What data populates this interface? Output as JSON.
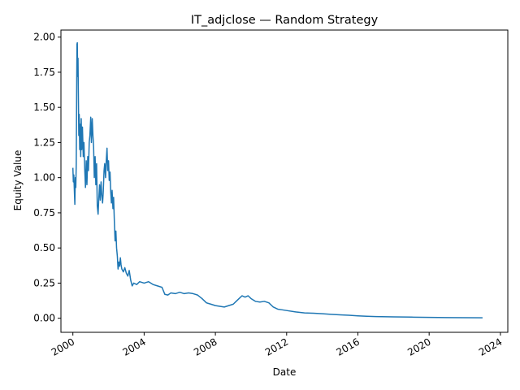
{
  "chart_data": {
    "type": "line",
    "title": "IT_adjclose — Random Strategy",
    "xlabel": "Date",
    "ylabel": "Equity Value",
    "xlim": [
      "1999-05-01",
      "2024-06-01"
    ],
    "ylim": [
      -0.1,
      2.05
    ],
    "grid": false,
    "legend": "none",
    "x_ticks": [
      "2000",
      "2004",
      "2008",
      "2012",
      "2016",
      "2020",
      "2024"
    ],
    "y_ticks": [
      "0.00",
      "0.25",
      "0.50",
      "0.75",
      "1.00",
      "1.25",
      "1.50",
      "1.75",
      "2.00"
    ],
    "series": [
      {
        "color": "#1f77b4",
        "points": [
          [
            "2000-01-01",
            1.07
          ],
          [
            "2000-01-10",
            0.97
          ],
          [
            "2000-01-20",
            1.02
          ],
          [
            "2000-02-01",
            0.9
          ],
          [
            "2000-02-10",
            0.81
          ],
          [
            "2000-02-20",
            1.0
          ],
          [
            "2000-03-01",
            0.93
          ],
          [
            "2000-03-10",
            1.1
          ],
          [
            "2000-03-15",
            1.38
          ],
          [
            "2000-03-20",
            1.7
          ],
          [
            "2000-03-25",
            1.95
          ],
          [
            "2000-04-01",
            1.96
          ],
          [
            "2000-04-08",
            1.72
          ],
          [
            "2000-04-15",
            1.85
          ],
          [
            "2000-04-22",
            1.6
          ],
          [
            "2000-05-01",
            1.3
          ],
          [
            "2000-05-10",
            1.45
          ],
          [
            "2000-05-20",
            1.2
          ],
          [
            "2000-06-01",
            1.38
          ],
          [
            "2000-06-10",
            1.15
          ],
          [
            "2000-06-20",
            1.42
          ],
          [
            "2000-07-01",
            1.2
          ],
          [
            "2000-07-15",
            1.36
          ],
          [
            "2000-08-01",
            1.15
          ],
          [
            "2000-08-15",
            1.25
          ],
          [
            "2000-09-01",
            1.05
          ],
          [
            "2000-09-15",
            0.93
          ],
          [
            "2000-10-01",
            1.12
          ],
          [
            "2000-10-15",
            0.95
          ],
          [
            "2000-11-01",
            1.15
          ],
          [
            "2000-11-15",
            1.05
          ],
          [
            "2000-12-01",
            1.25
          ],
          [
            "2000-12-15",
            1.3
          ],
          [
            "2001-01-01",
            1.43
          ],
          [
            "2001-01-15",
            1.25
          ],
          [
            "2001-02-01",
            1.42
          ],
          [
            "2001-02-15",
            1.3
          ],
          [
            "2001-03-01",
            1.22
          ],
          [
            "2001-03-15",
            1.0
          ],
          [
            "2001-04-01",
            1.15
          ],
          [
            "2001-04-15",
            0.95
          ],
          [
            "2001-05-01",
            1.1
          ],
          [
            "2001-05-15",
            0.8
          ],
          [
            "2001-06-01",
            0.74
          ],
          [
            "2001-06-15",
            0.85
          ],
          [
            "2001-07-01",
            0.95
          ],
          [
            "2001-07-15",
            0.84
          ],
          [
            "2001-08-01",
            0.97
          ],
          [
            "2001-08-15",
            0.88
          ],
          [
            "2001-09-01",
            0.82
          ],
          [
            "2001-09-15",
            0.9
          ],
          [
            "2001-10-01",
            1.05
          ],
          [
            "2001-10-15",
            1.1
          ],
          [
            "2001-11-01",
            1.0
          ],
          [
            "2001-11-15",
            1.12
          ],
          [
            "2001-12-01",
            1.21
          ],
          [
            "2001-12-15",
            1.05
          ],
          [
            "2002-01-01",
            1.12
          ],
          [
            "2002-01-15",
            0.98
          ],
          [
            "2002-02-01",
            1.04
          ],
          [
            "2002-02-15",
            0.9
          ],
          [
            "2002-03-01",
            0.82
          ],
          [
            "2002-03-15",
            0.91
          ],
          [
            "2002-04-01",
            0.78
          ],
          [
            "2002-04-15",
            0.86
          ],
          [
            "2002-05-01",
            0.68
          ],
          [
            "2002-05-15",
            0.55
          ],
          [
            "2002-06-01",
            0.62
          ],
          [
            "2002-06-15",
            0.5
          ],
          [
            "2002-07-01",
            0.44
          ],
          [
            "2002-07-15",
            0.35
          ],
          [
            "2002-08-01",
            0.4
          ],
          [
            "2002-08-15",
            0.37
          ],
          [
            "2002-09-01",
            0.43
          ],
          [
            "2002-09-15",
            0.38
          ],
          [
            "2002-10-01",
            0.35
          ],
          [
            "2002-11-01",
            0.33
          ],
          [
            "2002-12-01",
            0.36
          ],
          [
            "2003-01-01",
            0.32
          ],
          [
            "2003-02-01",
            0.3
          ],
          [
            "2003-03-01",
            0.34
          ],
          [
            "2003-04-01",
            0.27
          ],
          [
            "2003-05-01",
            0.23
          ],
          [
            "2003-06-01",
            0.25
          ],
          [
            "2003-08-01",
            0.24
          ],
          [
            "2003-10-01",
            0.26
          ],
          [
            "2004-01-01",
            0.25
          ],
          [
            "2004-04-01",
            0.26
          ],
          [
            "2004-07-01",
            0.24
          ],
          [
            "2004-10-01",
            0.23
          ],
          [
            "2005-01-01",
            0.22
          ],
          [
            "2005-03-01",
            0.17
          ],
          [
            "2005-05-01",
            0.165
          ],
          [
            "2005-07-01",
            0.18
          ],
          [
            "2005-10-01",
            0.175
          ],
          [
            "2006-01-01",
            0.185
          ],
          [
            "2006-04-01",
            0.175
          ],
          [
            "2006-07-01",
            0.18
          ],
          [
            "2006-10-01",
            0.175
          ],
          [
            "2007-01-01",
            0.165
          ],
          [
            "2007-04-01",
            0.14
          ],
          [
            "2007-07-01",
            0.11
          ],
          [
            "2007-10-01",
            0.1
          ],
          [
            "2008-01-01",
            0.09
          ],
          [
            "2008-04-01",
            0.085
          ],
          [
            "2008-07-01",
            0.08
          ],
          [
            "2008-10-01",
            0.09
          ],
          [
            "2009-01-01",
            0.1
          ],
          [
            "2009-03-01",
            0.12
          ],
          [
            "2009-05-01",
            0.14
          ],
          [
            "2009-07-01",
            0.16
          ],
          [
            "2009-09-01",
            0.15
          ],
          [
            "2009-11-01",
            0.16
          ],
          [
            "2010-01-01",
            0.14
          ],
          [
            "2010-04-01",
            0.12
          ],
          [
            "2010-07-01",
            0.115
          ],
          [
            "2010-10-01",
            0.12
          ],
          [
            "2011-01-01",
            0.11
          ],
          [
            "2011-04-01",
            0.08
          ],
          [
            "2011-07-01",
            0.065
          ],
          [
            "2011-10-01",
            0.06
          ],
          [
            "2012-01-01",
            0.055
          ],
          [
            "2012-07-01",
            0.045
          ],
          [
            "2013-01-01",
            0.038
          ],
          [
            "2013-07-01",
            0.036
          ],
          [
            "2014-01-01",
            0.032
          ],
          [
            "2014-07-01",
            0.028
          ],
          [
            "2015-01-01",
            0.024
          ],
          [
            "2015-07-01",
            0.021
          ],
          [
            "2016-01-01",
            0.017
          ],
          [
            "2016-07-01",
            0.014
          ],
          [
            "2017-01-01",
            0.012
          ],
          [
            "2018-01-01",
            0.01
          ],
          [
            "2019-01-01",
            0.008
          ],
          [
            "2020-01-01",
            0.006
          ],
          [
            "2021-01-01",
            0.005
          ],
          [
            "2022-01-01",
            0.004
          ],
          [
            "2022-12-31",
            0.003
          ]
        ]
      }
    ]
  }
}
